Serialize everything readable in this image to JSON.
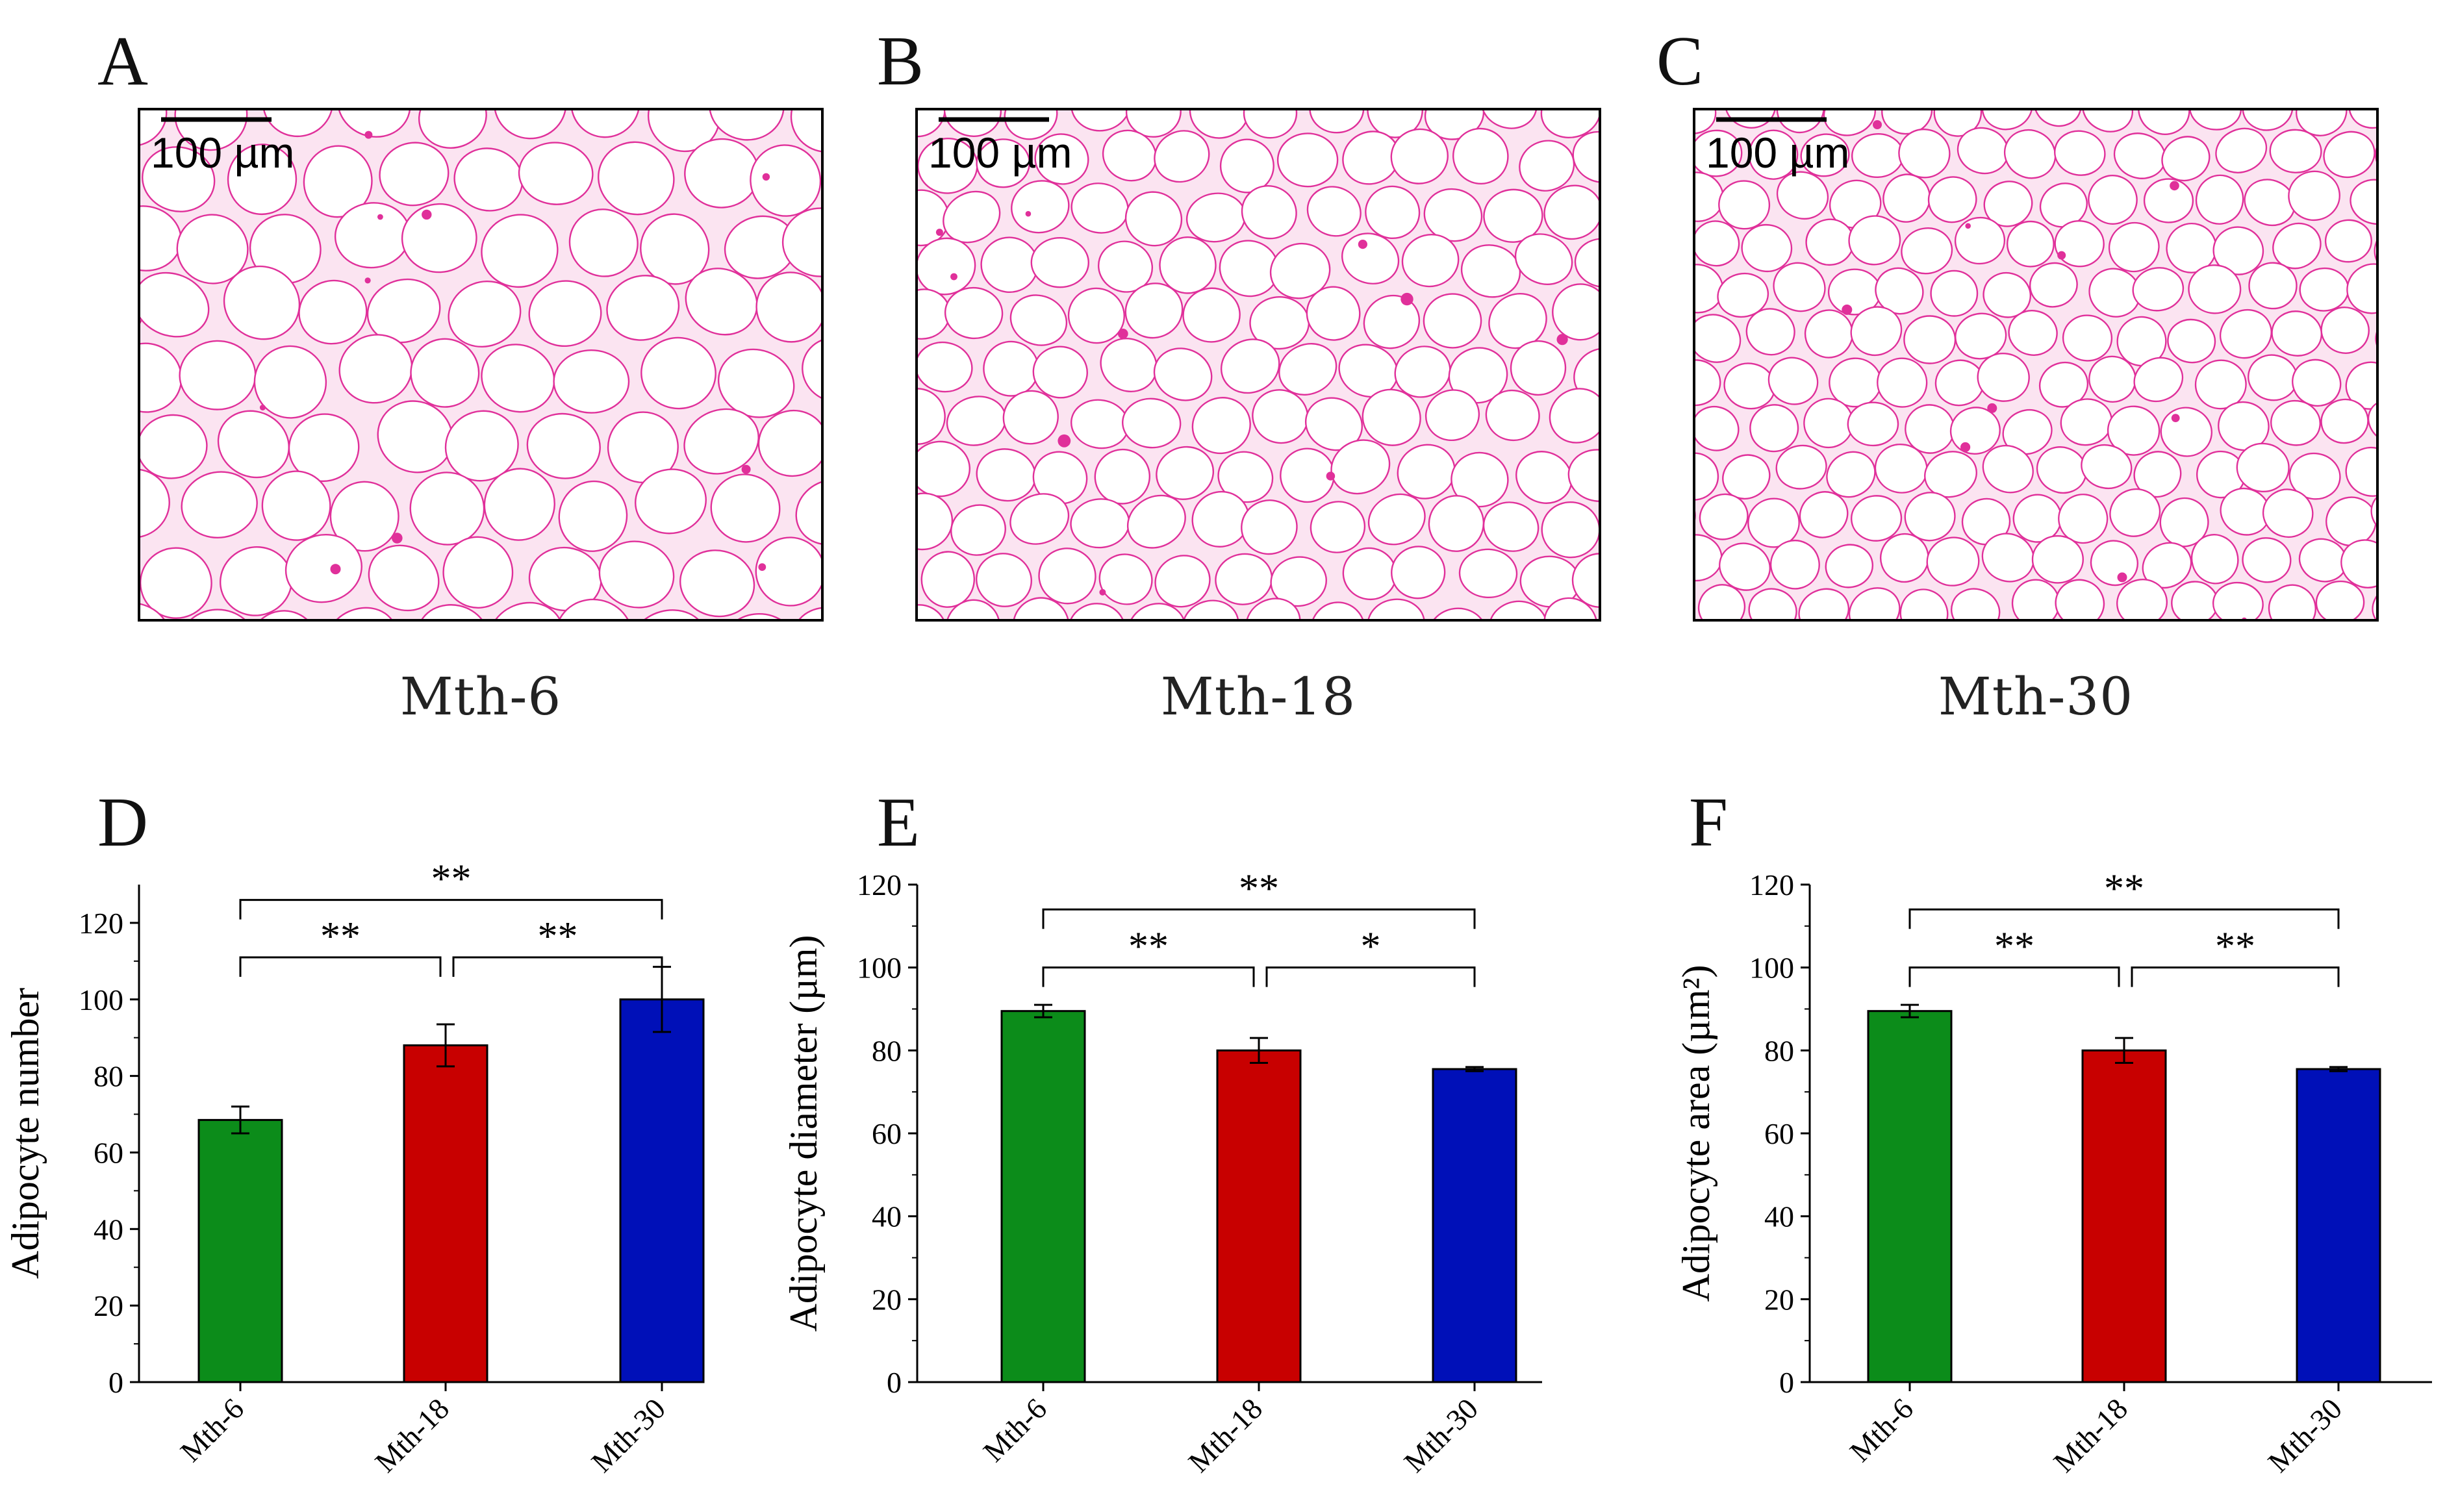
{
  "figure": {
    "histology": [
      {
        "letter": "A",
        "caption": "Mth-6",
        "scale_label": "100 µm",
        "cell_size": 1.0
      },
      {
        "letter": "B",
        "caption": "Mth-18",
        "scale_label": "100 µm",
        "cell_size": 0.78
      },
      {
        "letter": "C",
        "caption": "Mth-30",
        "scale_label": "100 µm",
        "cell_size": 0.68
      }
    ],
    "colors": {
      "green": "#0c8c1a",
      "red": "#c80000",
      "blue": "#0010b8",
      "stain": "#e0309a",
      "tissue": "#fbe4f1"
    }
  },
  "chart_data": [
    {
      "letter": "D",
      "type": "bar",
      "categories": [
        "Mth-6",
        "Mth-18",
        "Mth-30"
      ],
      "values": [
        68.5,
        88,
        100
      ],
      "errors": [
        3.5,
        5.5,
        8.5
      ],
      "ylabel": "Adipocyte number",
      "ylim": [
        0,
        130
      ],
      "yticks": [
        0,
        20,
        40,
        60,
        80,
        100,
        120
      ],
      "significance": [
        {
          "from": 0,
          "to": 1,
          "label": "**",
          "y": 111
        },
        {
          "from": 1,
          "to": 2,
          "label": "**",
          "y": 111
        },
        {
          "from": 0,
          "to": 2,
          "label": "**",
          "y": 126
        }
      ]
    },
    {
      "letter": "E",
      "type": "bar",
      "categories": [
        "Mth-6",
        "Mth-18",
        "Mth-30"
      ],
      "values": [
        89.5,
        80,
        75.5
      ],
      "errors": [
        1.5,
        3,
        0.5
      ],
      "ylabel": "Adipocyte diameter (µm)",
      "ylim": [
        0,
        120
      ],
      "yticks": [
        0,
        20,
        40,
        60,
        80,
        100,
        120
      ],
      "significance": [
        {
          "from": 0,
          "to": 1,
          "label": "**",
          "y": 100
        },
        {
          "from": 1,
          "to": 2,
          "label": "*",
          "y": 100
        },
        {
          "from": 0,
          "to": 2,
          "label": "**",
          "y": 114
        }
      ]
    },
    {
      "letter": "F",
      "type": "bar",
      "categories": [
        "Mth-6",
        "Mth-18",
        "Mth-30"
      ],
      "values": [
        89.5,
        80,
        75.5
      ],
      "errors": [
        1.5,
        3,
        0.5
      ],
      "ylabel": "Adipocyte area (µm²)",
      "ylim": [
        0,
        120
      ],
      "yticks": [
        0,
        20,
        40,
        60,
        80,
        100,
        120
      ],
      "significance": [
        {
          "from": 0,
          "to": 1,
          "label": "**",
          "y": 100
        },
        {
          "from": 1,
          "to": 2,
          "label": "**",
          "y": 100
        },
        {
          "from": 0,
          "to": 2,
          "label": "**",
          "y": 114
        }
      ]
    }
  ]
}
